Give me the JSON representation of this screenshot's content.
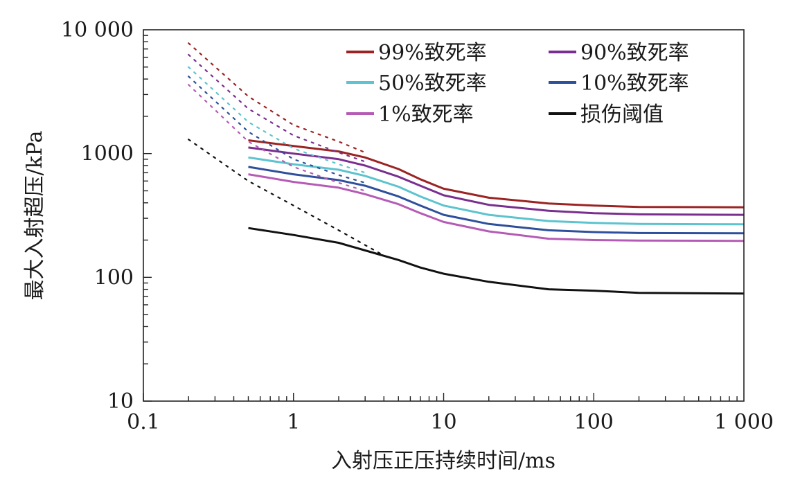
{
  "chart_data": {
    "type": "line",
    "x_scale": "log",
    "y_scale": "log",
    "xlabel": "入射压正压持续时间/ms",
    "ylabel": "最大入射超压/kPa",
    "xlim": [
      0.1,
      1000
    ],
    "ylim": [
      10,
      10000
    ],
    "x_ticks": [
      {
        "value": 0.1,
        "label": "0.1"
      },
      {
        "value": 1,
        "label": "1"
      },
      {
        "value": 10,
        "label": "10"
      },
      {
        "value": 100,
        "label": "100"
      },
      {
        "value": 1000,
        "label": "1 000"
      }
    ],
    "y_ticks": [
      {
        "value": 10,
        "label": "10"
      },
      {
        "value": 100,
        "label": "100"
      },
      {
        "value": 1000,
        "label": "1000"
      },
      {
        "value": 10000,
        "label": "10 000"
      }
    ],
    "legend_position": "top-right",
    "series": [
      {
        "name": "99%致死率",
        "color": "#9b2323",
        "extrapolated": [
          [
            0.2,
            7800
          ],
          [
            0.5,
            2900
          ],
          [
            1,
            1700
          ],
          [
            2,
            1250
          ],
          [
            3,
            1020
          ]
        ],
        "values": [
          [
            0.5,
            1280
          ],
          [
            1,
            1150
          ],
          [
            2,
            1040
          ],
          [
            3,
            930
          ],
          [
            5,
            750
          ],
          [
            7,
            620
          ],
          [
            10,
            520
          ],
          [
            20,
            440
          ],
          [
            50,
            395
          ],
          [
            100,
            380
          ],
          [
            200,
            370
          ],
          [
            1000,
            368
          ]
        ]
      },
      {
        "name": "90%致死率",
        "color": "#7a2e8e",
        "extrapolated": [
          [
            0.2,
            6300
          ],
          [
            0.5,
            2300
          ],
          [
            1,
            1400
          ],
          [
            2,
            1020
          ],
          [
            3,
            860
          ]
        ],
        "values": [
          [
            0.5,
            1120
          ],
          [
            1,
            1000
          ],
          [
            2,
            900
          ],
          [
            3,
            800
          ],
          [
            5,
            650
          ],
          [
            7,
            550
          ],
          [
            10,
            460
          ],
          [
            20,
            385
          ],
          [
            50,
            345
          ],
          [
            100,
            330
          ],
          [
            200,
            323
          ],
          [
            1000,
            320
          ]
        ]
      },
      {
        "name": "50%致死率",
        "color": "#5cc3cf",
        "extrapolated": [
          [
            0.2,
            5000
          ],
          [
            0.5,
            1800
          ],
          [
            1,
            1100
          ],
          [
            2,
            820
          ],
          [
            3,
            700
          ]
        ],
        "values": [
          [
            0.5,
            930
          ],
          [
            1,
            820
          ],
          [
            2,
            740
          ],
          [
            3,
            660
          ],
          [
            5,
            540
          ],
          [
            7,
            450
          ],
          [
            10,
            380
          ],
          [
            20,
            320
          ],
          [
            50,
            285
          ],
          [
            100,
            275
          ],
          [
            200,
            270
          ],
          [
            1000,
            268
          ]
        ]
      },
      {
        "name": "10%致死率",
        "color": "#2e4f9b",
        "extrapolated": [
          [
            0.2,
            4200
          ],
          [
            0.5,
            1500
          ],
          [
            1,
            900
          ],
          [
            2,
            670
          ],
          [
            3,
            580
          ]
        ],
        "values": [
          [
            0.5,
            780
          ],
          [
            1,
            680
          ],
          [
            2,
            610
          ],
          [
            3,
            550
          ],
          [
            5,
            450
          ],
          [
            7,
            380
          ],
          [
            10,
            320
          ],
          [
            20,
            270
          ],
          [
            50,
            240
          ],
          [
            100,
            232
          ],
          [
            200,
            228
          ],
          [
            1000,
            227
          ]
        ]
      },
      {
        "name": "1%致死率",
        "color": "#b55bb5",
        "extrapolated": [
          [
            0.2,
            3600
          ],
          [
            0.5,
            1250
          ],
          [
            1,
            780
          ],
          [
            2,
            580
          ],
          [
            3,
            500
          ]
        ],
        "values": [
          [
            0.5,
            680
          ],
          [
            1,
            590
          ],
          [
            2,
            530
          ],
          [
            3,
            470
          ],
          [
            5,
            390
          ],
          [
            7,
            330
          ],
          [
            10,
            280
          ],
          [
            20,
            235
          ],
          [
            50,
            205
          ],
          [
            100,
            200
          ],
          [
            200,
            198
          ],
          [
            1000,
            197
          ]
        ]
      },
      {
        "name": "损伤阈值",
        "color": "#111111",
        "extrapolated": [
          [
            0.2,
            1300
          ],
          [
            0.5,
            600
          ],
          [
            1,
            380
          ],
          [
            2,
            240
          ],
          [
            4,
            150
          ]
        ],
        "values": [
          [
            0.5,
            250
          ],
          [
            1,
            220
          ],
          [
            2,
            190
          ],
          [
            3,
            165
          ],
          [
            5,
            138
          ],
          [
            7,
            120
          ],
          [
            10,
            107
          ],
          [
            20,
            92
          ],
          [
            50,
            80
          ],
          [
            100,
            78
          ],
          [
            200,
            75
          ],
          [
            1000,
            74
          ]
        ]
      }
    ]
  }
}
